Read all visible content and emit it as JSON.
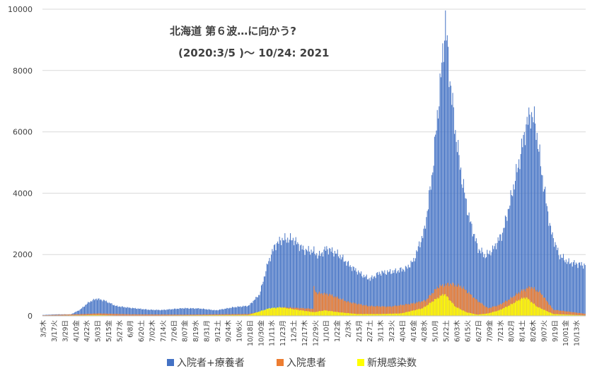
{
  "chart_data": {
    "type": "bar",
    "title": "北海道 第６波…に向かう?",
    "subtitle": "(2020:3/5 )～ 10/24: 2021",
    "xlabel": "",
    "ylabel": "",
    "ylim": [
      0,
      10000
    ],
    "yticks": [
      "0",
      "2000",
      "4000",
      "6000",
      "8000",
      "10000"
    ],
    "grid": true,
    "legend_position": "bottom",
    "colors": {
      "hosp_treat": "#4472C4",
      "hospitalized": "#ED7D31",
      "new_cases": "#FFFF00",
      "grid": "#d9d9d9",
      "axis": "#bfbfbf",
      "text": "#404040"
    },
    "x_start": "2020-03-05",
    "x_end": "2021-10-24",
    "x_tick_labels": [
      "3/5木",
      "3/17火",
      "3/29日",
      "4/10金",
      "4/22水",
      "5/03日",
      "5/15金",
      "5/27水",
      "6/8月",
      "6/20土",
      "7/02木",
      "7/14火",
      "7/26日",
      "8/07金",
      "8/19水",
      "8/31月",
      "9/12土",
      "9/24木",
      "10/6火",
      "10/18日",
      "10/30金",
      "11/11水",
      "11/23月",
      "12/5土",
      "12/17木",
      "12/29火",
      "1/10日",
      "1/22金",
      "2/3水",
      "2/15月",
      "2/27土",
      "3/11木",
      "3/23火",
      "4/04日",
      "4/16金",
      "4/28水",
      "5/10月",
      "5/22土",
      "6/03木",
      "6/15火",
      "6/27日",
      "7/09金",
      "7/21水",
      "8/02月",
      "8/14土",
      "8/26木",
      "9/07火",
      "9/19日",
      "10/01金",
      "10/13水"
    ],
    "series": [
      {
        "name": "入院者+療養者",
        "color": "#4472C4",
        "keyframes": [
          [
            "2020-03-05",
            30
          ],
          [
            "2020-03-20",
            50
          ],
          [
            "2020-04-05",
            50
          ],
          [
            "2020-04-15",
            200
          ],
          [
            "2020-04-25",
            450
          ],
          [
            "2020-05-03",
            560
          ],
          [
            "2020-05-12",
            500
          ],
          [
            "2020-05-25",
            320
          ],
          [
            "2020-06-10",
            260
          ],
          [
            "2020-06-30",
            200
          ],
          [
            "2020-07-14",
            190
          ],
          [
            "2020-08-07",
            250
          ],
          [
            "2020-08-25",
            240
          ],
          [
            "2020-09-12",
            180
          ],
          [
            "2020-10-01",
            280
          ],
          [
            "2020-10-18",
            330
          ],
          [
            "2020-10-30",
            700
          ],
          [
            "2020-11-08",
            1700
          ],
          [
            "2020-11-16",
            2300
          ],
          [
            "2020-11-24",
            2500
          ],
          [
            "2020-12-06",
            2500
          ],
          [
            "2020-12-18",
            2150
          ],
          [
            "2020-12-29",
            2100
          ],
          [
            "2021-01-03",
            1950
          ],
          [
            "2021-01-12",
            2200
          ],
          [
            "2021-01-25",
            2000
          ],
          [
            "2021-02-08",
            1600
          ],
          [
            "2021-02-22",
            1300
          ],
          [
            "2021-03-01",
            1200
          ],
          [
            "2021-03-11",
            1400
          ],
          [
            "2021-03-28",
            1450
          ],
          [
            "2021-04-10",
            1550
          ],
          [
            "2021-04-18",
            1800
          ],
          [
            "2021-04-30",
            2800
          ],
          [
            "2021-05-08",
            4500
          ],
          [
            "2021-05-15",
            6800
          ],
          [
            "2021-05-20",
            8500
          ],
          [
            "2021-05-23",
            9600
          ],
          [
            "2021-05-27",
            8000
          ],
          [
            "2021-06-03",
            6000
          ],
          [
            "2021-06-10",
            4500
          ],
          [
            "2021-06-18",
            3200
          ],
          [
            "2021-06-28",
            2200
          ],
          [
            "2021-07-06",
            1950
          ],
          [
            "2021-07-14",
            2150
          ],
          [
            "2021-07-25",
            2700
          ],
          [
            "2021-08-03",
            3800
          ],
          [
            "2021-08-12",
            5000
          ],
          [
            "2021-08-20",
            6200
          ],
          [
            "2021-08-25",
            6600
          ],
          [
            "2021-08-30",
            6300
          ],
          [
            "2021-09-07",
            4500
          ],
          [
            "2021-09-16",
            2800
          ],
          [
            "2021-09-25",
            2000
          ],
          [
            "2021-10-05",
            1750
          ],
          [
            "2021-10-24",
            1650
          ]
        ]
      },
      {
        "name": "入院患者",
        "color": "#ED7D31",
        "keyframes": [
          [
            "2020-03-05",
            20
          ],
          [
            "2020-04-20",
            60
          ],
          [
            "2020-05-05",
            80
          ],
          [
            "2020-06-10",
            50
          ],
          [
            "2020-08-07",
            40
          ],
          [
            "2020-10-18",
            60
          ],
          [
            "2020-11-23",
            280
          ],
          [
            "2020-12-10",
            260
          ],
          [
            "2020-12-28",
            230
          ],
          [
            "2020-12-29",
            900
          ],
          [
            "2021-01-01",
            750
          ],
          [
            "2021-01-15",
            700
          ],
          [
            "2021-02-05",
            450
          ],
          [
            "2021-02-27",
            320
          ],
          [
            "2021-03-23",
            300
          ],
          [
            "2021-04-16",
            400
          ],
          [
            "2021-05-01",
            500
          ],
          [
            "2021-05-15",
            950
          ],
          [
            "2021-05-28",
            1050
          ],
          [
            "2021-06-10",
            950
          ],
          [
            "2021-06-27",
            500
          ],
          [
            "2021-07-09",
            250
          ],
          [
            "2021-07-21",
            350
          ],
          [
            "2021-08-02",
            550
          ],
          [
            "2021-08-14",
            800
          ],
          [
            "2021-08-25",
            950
          ],
          [
            "2021-09-05",
            750
          ],
          [
            "2021-09-19",
            200
          ],
          [
            "2021-10-24",
            70
          ]
        ]
      },
      {
        "name": "新規感染数",
        "color": "#FFFF00",
        "keyframes": [
          [
            "2020-03-05",
            5
          ],
          [
            "2020-04-20",
            20
          ],
          [
            "2020-05-03",
            30
          ],
          [
            "2020-06-01",
            5
          ],
          [
            "2020-10-18",
            30
          ],
          [
            "2020-11-10",
            250
          ],
          [
            "2020-11-23",
            280
          ],
          [
            "2020-12-10",
            200
          ],
          [
            "2020-12-29",
            120
          ],
          [
            "2021-01-10",
            180
          ],
          [
            "2021-01-25",
            120
          ],
          [
            "2021-02-15",
            60
          ],
          [
            "2021-03-11",
            60
          ],
          [
            "2021-04-04",
            80
          ],
          [
            "2021-04-28",
            250
          ],
          [
            "2021-05-10",
            500
          ],
          [
            "2021-05-18",
            650
          ],
          [
            "2021-05-22",
            720
          ],
          [
            "2021-06-03",
            300
          ],
          [
            "2021-06-15",
            120
          ],
          [
            "2021-06-27",
            40
          ],
          [
            "2021-07-09",
            80
          ],
          [
            "2021-07-21",
            180
          ],
          [
            "2021-08-02",
            350
          ],
          [
            "2021-08-14",
            550
          ],
          [
            "2021-08-20",
            600
          ],
          [
            "2021-09-01",
            300
          ],
          [
            "2021-09-19",
            60
          ],
          [
            "2021-10-24",
            15
          ]
        ]
      }
    ]
  }
}
